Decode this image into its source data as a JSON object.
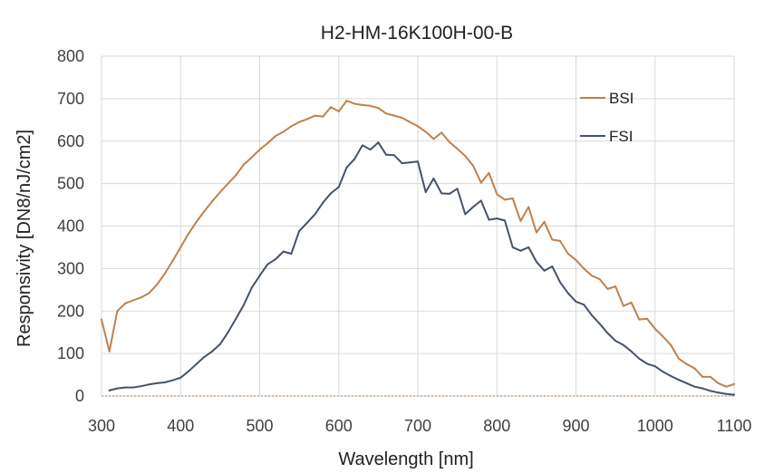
{
  "chart_data": {
    "type": "line",
    "title": "H2-HM-16K100H-00-B",
    "xlabel": "Wavelength [nm]",
    "ylabel": "Responsivity [DN8/nJ/cm2]",
    "xlim": [
      300,
      1100
    ],
    "ylim": [
      0,
      800
    ],
    "x_ticks": [
      300,
      400,
      500,
      600,
      700,
      800,
      900,
      1000,
      1100
    ],
    "y_ticks": [
      0,
      100,
      200,
      300,
      400,
      500,
      600,
      700,
      800
    ],
    "grid": "vertical and horizontal",
    "legend_position": "right",
    "series": [
      {
        "name": "BSI",
        "color": "#C0804C",
        "x": [
          300,
          310,
          320,
          330,
          340,
          350,
          360,
          370,
          380,
          390,
          400,
          410,
          420,
          430,
          440,
          450,
          460,
          470,
          480,
          490,
          500,
          510,
          520,
          530,
          540,
          550,
          560,
          570,
          580,
          590,
          600,
          610,
          620,
          630,
          640,
          650,
          660,
          670,
          680,
          690,
          700,
          710,
          720,
          730,
          740,
          750,
          760,
          770,
          780,
          790,
          800,
          810,
          820,
          830,
          840,
          850,
          860,
          870,
          880,
          890,
          900,
          910,
          920,
          930,
          940,
          950,
          960,
          970,
          980,
          990,
          1000,
          1010,
          1020,
          1030,
          1040,
          1050,
          1060,
          1070,
          1080,
          1090,
          1100
        ],
        "y": [
          180,
          105,
          200,
          218,
          225,
          232,
          242,
          262,
          288,
          318,
          350,
          382,
          410,
          435,
          458,
          480,
          500,
          520,
          545,
          562,
          580,
          595,
          612,
          622,
          635,
          645,
          652,
          660,
          658,
          680,
          670,
          695,
          688,
          685,
          683,
          678,
          665,
          660,
          655,
          645,
          635,
          622,
          605,
          620,
          598,
          582,
          565,
          542,
          502,
          525,
          475,
          462,
          465,
          412,
          445,
          385,
          410,
          368,
          365,
          335,
          320,
          300,
          283,
          275,
          252,
          258,
          212,
          220,
          180,
          182,
          158,
          140,
          120,
          88,
          75,
          65,
          45,
          45,
          30,
          22,
          28
        ]
      },
      {
        "name": "FSI",
        "color": "#44546A",
        "x": [
          310,
          320,
          330,
          340,
          350,
          360,
          370,
          380,
          390,
          400,
          410,
          420,
          430,
          440,
          450,
          460,
          470,
          480,
          490,
          500,
          510,
          520,
          530,
          540,
          550,
          560,
          570,
          580,
          590,
          600,
          610,
          620,
          630,
          640,
          650,
          660,
          670,
          680,
          690,
          700,
          710,
          720,
          730,
          740,
          750,
          760,
          770,
          780,
          790,
          800,
          810,
          820,
          830,
          840,
          850,
          860,
          870,
          880,
          890,
          900,
          910,
          920,
          930,
          940,
          950,
          960,
          970,
          980,
          990,
          1000,
          1010,
          1020,
          1030,
          1040,
          1050,
          1060,
          1070,
          1080,
          1090,
          1100
        ],
        "y": [
          13,
          18,
          20,
          20,
          23,
          27,
          30,
          32,
          37,
          43,
          58,
          75,
          92,
          105,
          122,
          150,
          182,
          215,
          255,
          283,
          310,
          322,
          340,
          335,
          388,
          408,
          428,
          455,
          477,
          492,
          538,
          558,
          590,
          580,
          597,
          568,
          567,
          548,
          550,
          552,
          480,
          512,
          477,
          476,
          488,
          428,
          445,
          460,
          415,
          418,
          413,
          350,
          342,
          350,
          316,
          295,
          305,
          268,
          242,
          222,
          215,
          190,
          170,
          148,
          130,
          120,
          105,
          88,
          76,
          70,
          57,
          47,
          38,
          30,
          22,
          18,
          12,
          8,
          5,
          3
        ]
      }
    ]
  }
}
